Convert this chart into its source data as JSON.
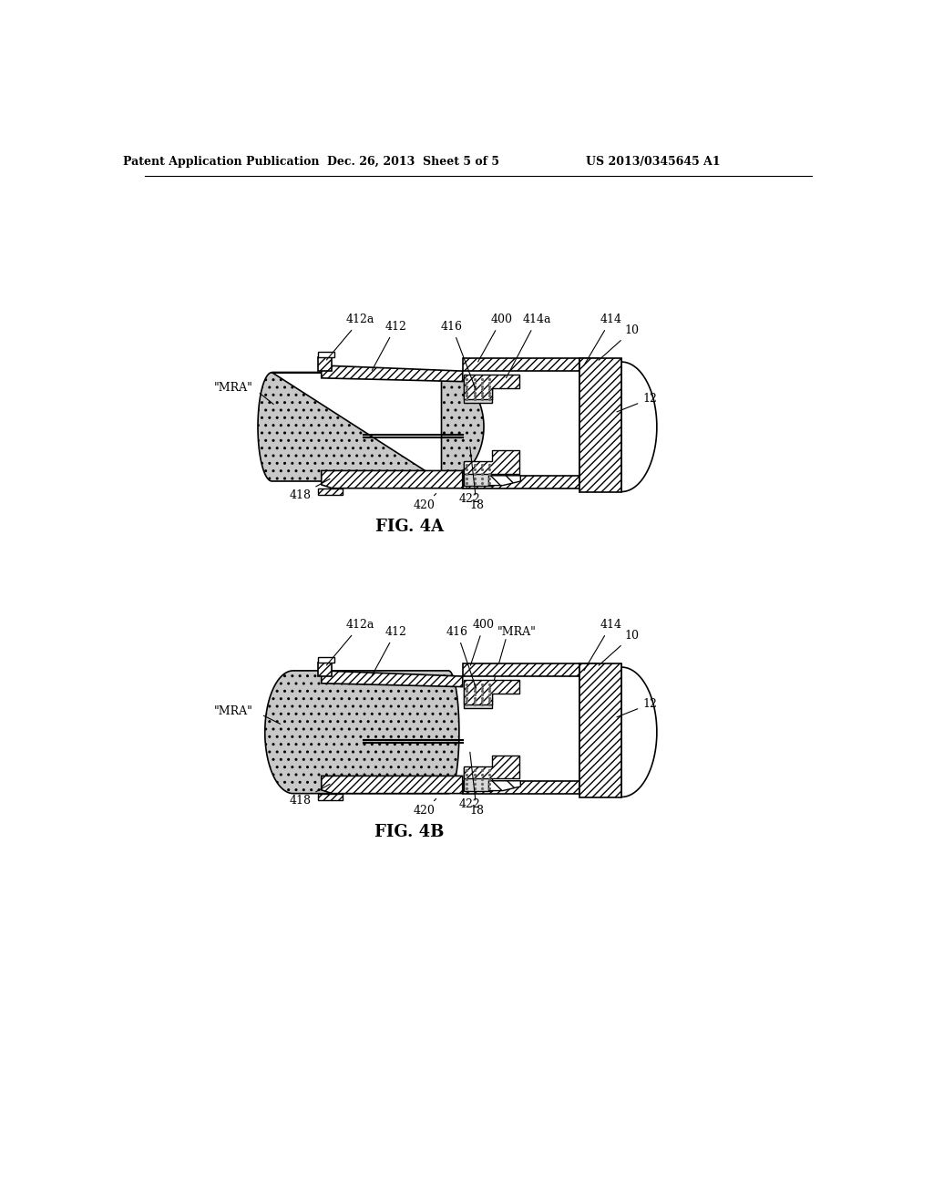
{
  "header_left": "Patent Application Publication",
  "header_mid": "Dec. 26, 2013  Sheet 5 of 5",
  "header_right": "US 2013/0345645 A1",
  "fig4a_label": "FIG. 4A",
  "fig4b_label": "FIG. 4B",
  "bg_color": "#ffffff"
}
